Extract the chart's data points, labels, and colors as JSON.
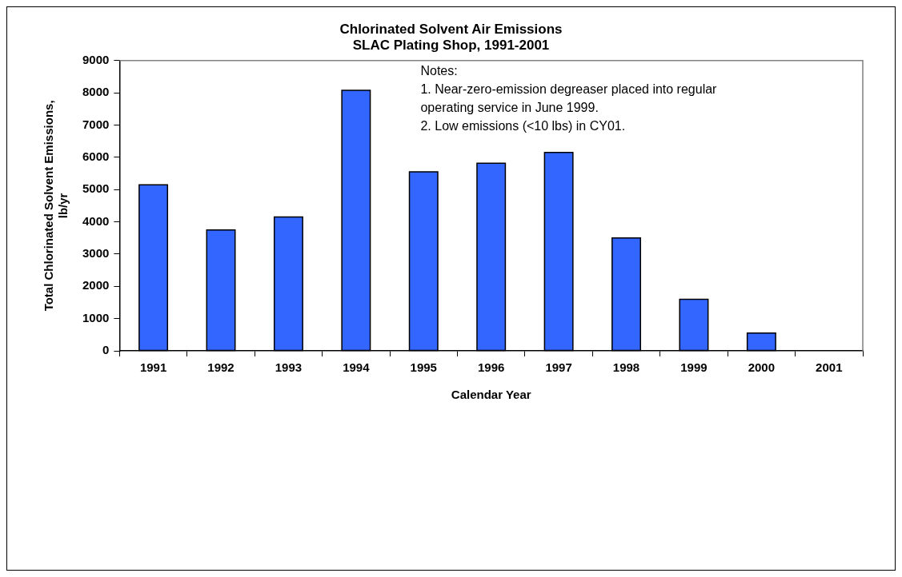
{
  "chart_data": {
    "type": "bar",
    "title": [
      "Chlorinated Solvent Air Emissions",
      "SLAC Plating Shop, 1991-2001"
    ],
    "xlabel": "Calendar Year",
    "ylabel": "Total Chlorinated Solvent Emissions, lb/yr",
    "categories": [
      "1991",
      "1992",
      "1993",
      "1994",
      "1995",
      "1996",
      "1997",
      "1998",
      "1999",
      "2000",
      "2001"
    ],
    "values": [
      5150,
      3750,
      4150,
      8080,
      5550,
      5820,
      6150,
      3500,
      1600,
      550,
      0
    ],
    "color": "#3366ff",
    "ylim": [
      0,
      9000
    ],
    "yticks": [
      0,
      1000,
      2000,
      3000,
      4000,
      5000,
      6000,
      7000,
      8000,
      9000
    ],
    "grid": false,
    "legend": false,
    "annotations": [
      "Notes:",
      "1. Near-zero-emission degreaser placed into regular operating service in June 1999.",
      "2. Low emissions (<10 lbs) in CY01."
    ]
  }
}
